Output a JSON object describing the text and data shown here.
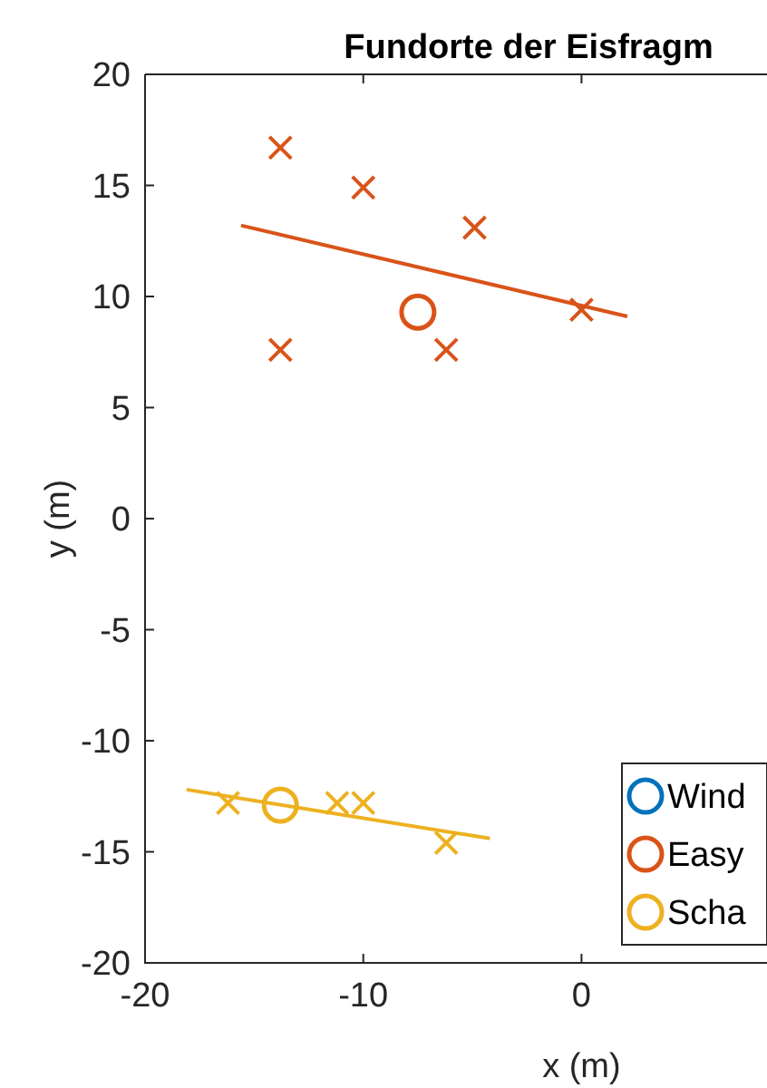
{
  "chart_data": {
    "type": "scatter",
    "title": "Fundorte der Eisfragm",
    "xlabel": "x (m)",
    "ylabel": "y (m)",
    "xlim": [
      -20,
      8.5
    ],
    "xticks": [
      -20,
      -10,
      0
    ],
    "ylim": [
      -20,
      20
    ],
    "yticks": [
      -20,
      -15,
      -10,
      -5,
      0,
      5,
      10,
      15,
      20
    ],
    "grid": false,
    "legend": "bottom right",
    "series": [
      {
        "name": "Wind",
        "marker": "circle",
        "color": "#0072bd"
      },
      {
        "name": "Easy",
        "marker": "circle",
        "color": "#d95319",
        "x": [
          -7.5
        ],
        "values": [
          9.3
        ]
      },
      {
        "marker": "cross",
        "color": "#d95319",
        "x": [
          -13.8,
          -10,
          -4.9,
          0,
          -13.8,
          -6.2
        ],
        "values": [
          16.7,
          14.9,
          13.1,
          9.4,
          7.6,
          7.6
        ]
      },
      {
        "type": "line",
        "marker": "none",
        "color": "#d95319",
        "x": [
          -15.6,
          2.1
        ],
        "values": [
          13.2,
          9.1
        ]
      },
      {
        "name": "Scha",
        "marker": "circle",
        "color": "#edb120",
        "x": [
          -13.8
        ],
        "values": [
          -12.9
        ]
      },
      {
        "marker": "cross",
        "color": "#edb120",
        "x": [
          -16.2,
          -11.2,
          -10,
          -6.2
        ],
        "values": [
          -12.8,
          -12.8,
          -12.8,
          -14.6
        ]
      },
      {
        "type": "line",
        "marker": "none",
        "color": "#edb120",
        "x": [
          -18.1,
          -4.2
        ],
        "values": [
          -12.2,
          -14.4
        ]
      }
    ]
  }
}
